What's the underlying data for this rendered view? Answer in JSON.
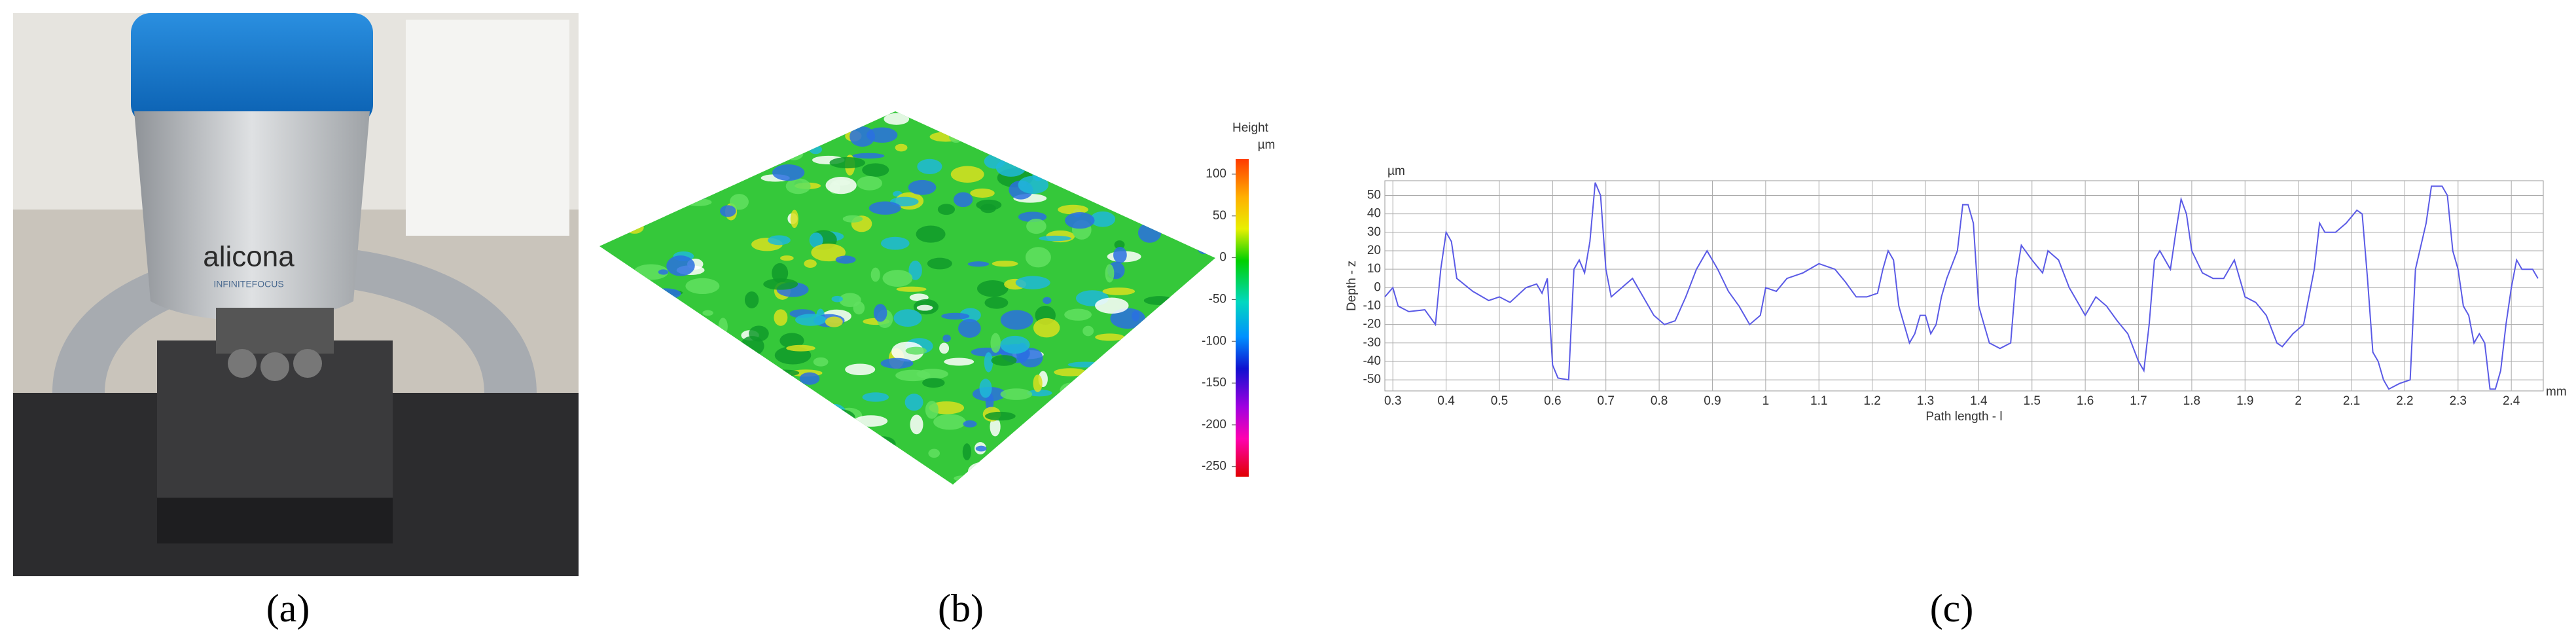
{
  "panels": [
    {
      "label": "(a)"
    },
    {
      "label": "(b)"
    },
    {
      "label": "(c)"
    }
  ],
  "photo": {
    "brand": "alicona",
    "model": "INFINITEFOCUS"
  },
  "colorbar": {
    "title": "Height",
    "unit": "µm",
    "lim": [
      -262,
      118
    ],
    "ticks": [
      100,
      50,
      0,
      -50,
      -100,
      -150,
      -200,
      -250
    ]
  },
  "chart_data": {
    "type": "line",
    "y_unit": "µm",
    "x_unit": "mm",
    "xlabel": "Path length - l",
    "ylabel": "Depth - z",
    "x": [
      0.285,
      0.3,
      0.31,
      0.33,
      0.36,
      0.38,
      0.39,
      0.4,
      0.41,
      0.42,
      0.45,
      0.48,
      0.5,
      0.52,
      0.55,
      0.57,
      0.58,
      0.59,
      0.6,
      0.61,
      0.63,
      0.64,
      0.65,
      0.66,
      0.67,
      0.68,
      0.69,
      0.7,
      0.71,
      0.73,
      0.75,
      0.77,
      0.79,
      0.81,
      0.83,
      0.85,
      0.87,
      0.89,
      0.91,
      0.93,
      0.95,
      0.97,
      0.99,
      1.0,
      1.02,
      1.04,
      1.07,
      1.1,
      1.13,
      1.15,
      1.17,
      1.19,
      1.21,
      1.22,
      1.23,
      1.24,
      1.25,
      1.27,
      1.28,
      1.29,
      1.3,
      1.31,
      1.32,
      1.33,
      1.34,
      1.36,
      1.37,
      1.38,
      1.39,
      1.4,
      1.41,
      1.42,
      1.44,
      1.46,
      1.47,
      1.48,
      1.5,
      1.52,
      1.53,
      1.55,
      1.57,
      1.59,
      1.6,
      1.62,
      1.64,
      1.66,
      1.68,
      1.7,
      1.71,
      1.72,
      1.73,
      1.74,
      1.76,
      1.77,
      1.78,
      1.79,
      1.8,
      1.82,
      1.84,
      1.86,
      1.88,
      1.89,
      1.9,
      1.92,
      1.94,
      1.96,
      1.97,
      1.99,
      2.01,
      2.03,
      2.04,
      2.05,
      2.07,
      2.09,
      2.11,
      2.12,
      2.13,
      2.14,
      2.15,
      2.16,
      2.17,
      2.19,
      2.21,
      2.22,
      2.24,
      2.25,
      2.27,
      2.28,
      2.29,
      2.3,
      2.31,
      2.32,
      2.33,
      2.34,
      2.35,
      2.36,
      2.37,
      2.38,
      2.39,
      2.4,
      2.41,
      2.42,
      2.44,
      2.45
    ],
    "series": [
      {
        "color": "#5a5ae6",
        "values": [
          -5,
          0,
          -10,
          -13,
          -12,
          -20,
          10,
          30,
          25,
          5,
          -2,
          -7,
          -5,
          -8,
          0,
          2,
          -3,
          5,
          -42,
          -49,
          -50,
          10,
          15,
          8,
          25,
          57,
          50,
          10,
          -5,
          0,
          5,
          -5,
          -15,
          -20,
          -18,
          -5,
          10,
          20,
          10,
          -2,
          -10,
          -20,
          -15,
          0,
          -2,
          5,
          8,
          13,
          10,
          3,
          -5,
          -5,
          -3,
          10,
          20,
          15,
          -10,
          -30,
          -25,
          -15,
          -15,
          -25,
          -20,
          -5,
          5,
          20,
          45,
          45,
          35,
          -10,
          -20,
          -30,
          -33,
          -30,
          5,
          23,
          15,
          8,
          20,
          15,
          0,
          -10,
          -15,
          -5,
          -10,
          -18,
          -25,
          -40,
          -45,
          -20,
          15,
          20,
          10,
          30,
          48,
          40,
          20,
          8,
          5,
          5,
          15,
          5,
          -5,
          -8,
          -15,
          -30,
          -32,
          -25,
          -20,
          10,
          35,
          30,
          30,
          35,
          42,
          40,
          5,
          -35,
          -40,
          -50,
          -55,
          -52,
          -50,
          10,
          35,
          55,
          55,
          50,
          20,
          10,
          -10,
          -15,
          -30,
          -25,
          -30,
          -55,
          -55,
          -45,
          -20,
          0,
          15,
          10,
          10,
          5
        ]
      }
    ],
    "xlim": [
      0.285,
      2.46
    ],
    "ylim": [
      -56,
      58
    ],
    "xticks": [
      0.3,
      0.4,
      0.5,
      0.6,
      0.7,
      0.8,
      0.9,
      1,
      1.1,
      1.2,
      1.3,
      1.4,
      1.5,
      1.6,
      1.7,
      1.8,
      1.9,
      2,
      2.1,
      2.2,
      2.3,
      2.4
    ],
    "yticks": [
      50,
      40,
      30,
      20,
      10,
      0,
      -10,
      -20,
      -30,
      -40,
      -50
    ],
    "grid": true
  }
}
